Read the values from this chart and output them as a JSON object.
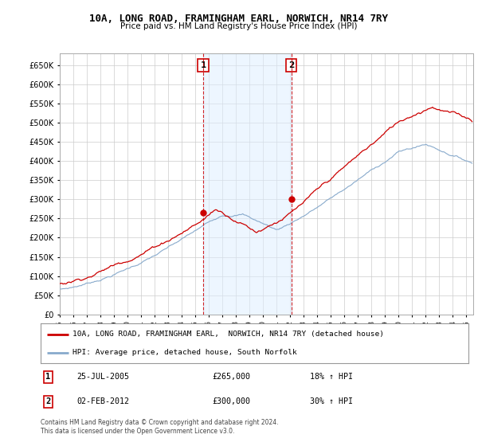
{
  "title": "10A, LONG ROAD, FRAMINGHAM EARL, NORWICH, NR14 7RY",
  "subtitle": "Price paid vs. HM Land Registry's House Price Index (HPI)",
  "ylim": [
    0,
    680000
  ],
  "yticks": [
    0,
    50000,
    100000,
    150000,
    200000,
    250000,
    300000,
    350000,
    400000,
    450000,
    500000,
    550000,
    600000,
    650000
  ],
  "sale1_year": 2005.58,
  "sale1_price": 265000,
  "sale1_date_str": "25-JUL-2005",
  "sale1_pct": "18% ↑ HPI",
  "sale2_year": 2012.08,
  "sale2_price": 300000,
  "sale2_date_str": "02-FEB-2012",
  "sale2_pct": "30% ↑ HPI",
  "legend_house": "10A, LONG ROAD, FRAMINGHAM EARL,  NORWICH, NR14 7RY (detached house)",
  "legend_hpi": "HPI: Average price, detached house, South Norfolk",
  "footer": "Contains HM Land Registry data © Crown copyright and database right 2024.\nThis data is licensed under the Open Government Licence v3.0.",
  "house_color": "#cc0000",
  "hpi_color": "#88aacc",
  "shade_color": "#ddeeff",
  "grid_color": "#cccccc",
  "xlim_left": 1995.0,
  "xlim_right": 2025.5
}
